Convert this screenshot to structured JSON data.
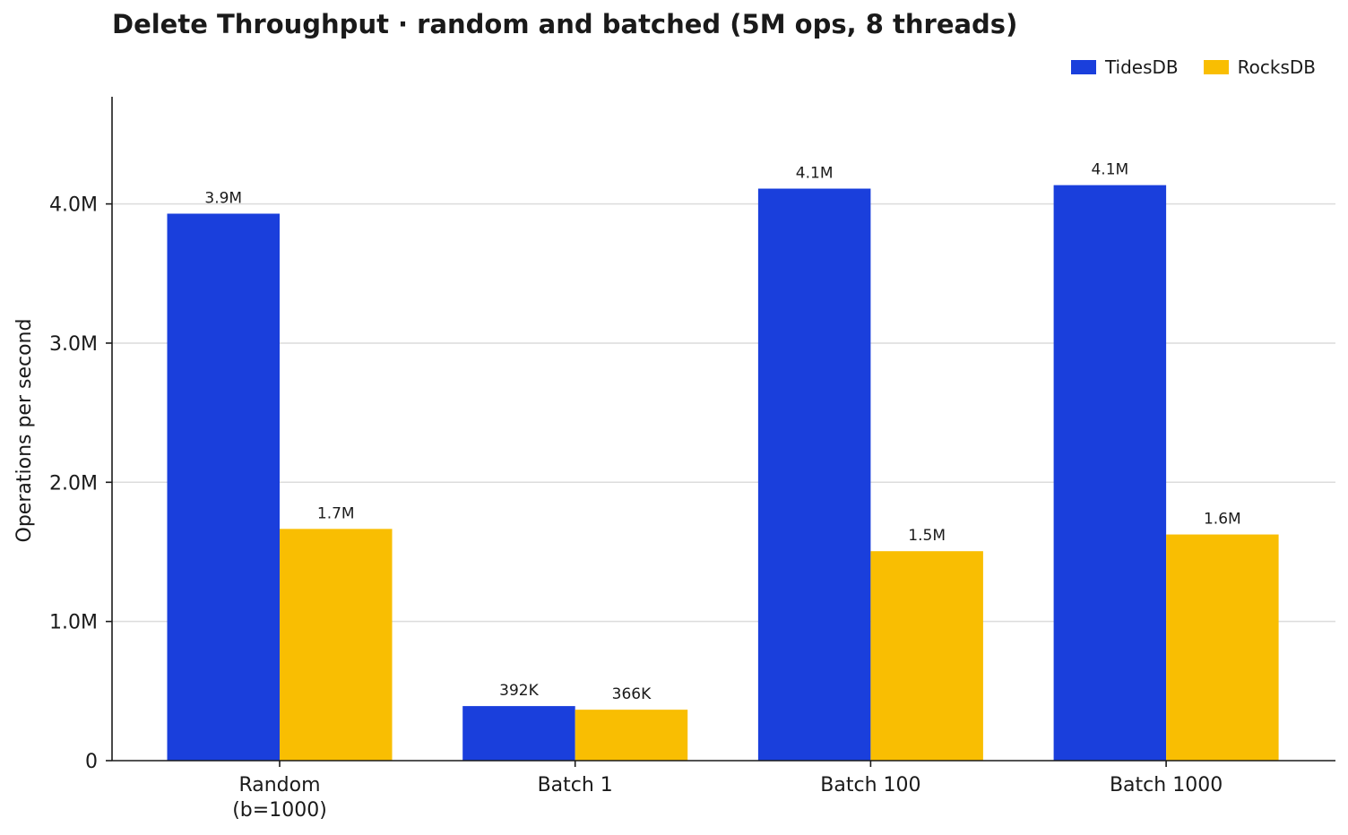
{
  "title": "Delete Throughput · random and batched (5M ops, 8 threads)",
  "legend": [
    {
      "name": "TidesDB",
      "color": "#1a3fdc"
    },
    {
      "name": "RocksDB",
      "color": "#f9be02"
    }
  ],
  "chart_data": {
    "type": "bar",
    "title": "Delete Throughput · random and batched (5M ops, 8 threads)",
    "categories": [
      [
        "Random",
        "(b=1000)"
      ],
      [
        "Batch 1"
      ],
      [
        "Batch 100"
      ],
      [
        "Batch 1000"
      ]
    ],
    "series": [
      {
        "name": "TidesDB",
        "color": "#1a3fdc",
        "values": [
          3930000,
          392000,
          4110000,
          4135000
        ],
        "labels": [
          "3.9M",
          "392K",
          "4.1M",
          "4.1M"
        ]
      },
      {
        "name": "RocksDB",
        "color": "#f9be02",
        "values": [
          1665000,
          366000,
          1505000,
          1625000
        ],
        "labels": [
          "1.7M",
          "366K",
          "1.5M",
          "1.6M"
        ]
      }
    ],
    "ylabel": "Operations per second",
    "xlabel": "",
    "ylim": [
      0,
      4770000
    ],
    "yticks": [
      0,
      1000000,
      2000000,
      3000000,
      4000000
    ],
    "ytick_labels": [
      "0",
      "1.0M",
      "2.0M",
      "3.0M",
      "4.0M"
    ],
    "grid": "horizontal",
    "legend_position": "top-right"
  }
}
